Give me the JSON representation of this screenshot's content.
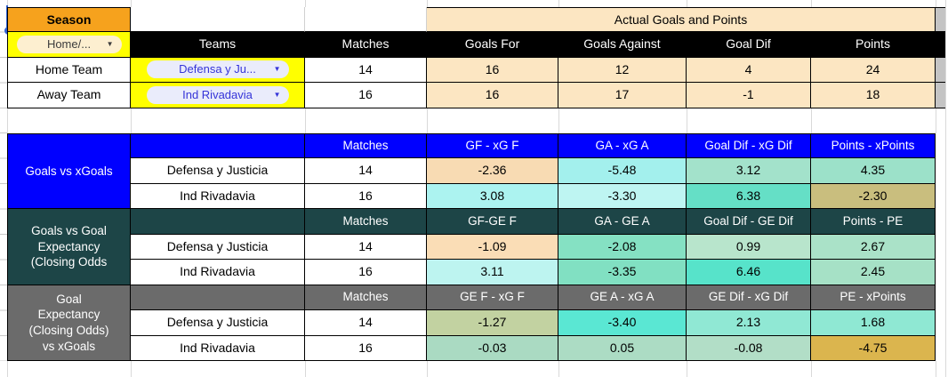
{
  "palette": {
    "orange_header": "#F6A21D",
    "cream": "#FCE6C2",
    "yellow": "#FFFF00",
    "black": "#000000",
    "white": "#FFFFFF",
    "blue": "#0000FF",
    "teal": "#1D4547",
    "gray": "#6B6B6B",
    "strip_gray": "#C4C4C4",
    "selection_blue": "#2F5FD0",
    "chip_home_bg": "#FDEFD0",
    "chip_team_bg": "#EAECFB",
    "s1r0v1": "#F8DBB3",
    "s1r0v2": "#A3F0ED",
    "s1r0v3": "#A3E2CB",
    "s1r0v4": "#9CE1C9",
    "s1r1v1": "#ACF3F0",
    "s1r1v2": "#BEF5F2",
    "s1r1v3": "#65DFC6",
    "s1r1v4": "#C9BE7E",
    "s2r0v1": "#FADDB6",
    "s2r0v2": "#85E1C3",
    "s2r0v3": "#B8E5CC",
    "s2r0v4": "#AAE2C8",
    "s2r1v1": "#BDF4F0",
    "s2r1v2": "#81E0C2",
    "s2r1v3": "#57E3CA",
    "s2r1v4": "#A6E1C6",
    "s3r0v1": "#C2D2A1",
    "s3r0v2": "#5AE7D3",
    "s3r0v3": "#90E8D4",
    "s3r0v4": "#8FE8D3",
    "s3r1v1": "#AADAC2",
    "s3r1v2": "#ACDCC4",
    "s3r1v3": "#B2DEC7",
    "s3r1v4": "#DBB54E"
  },
  "icons": {
    "dropdown_arrow": "▼"
  },
  "top": {
    "season": "Season",
    "group_header": "Actual Goals and Points",
    "home_away_dropdown": "Home/...",
    "headers": {
      "teams": "Teams",
      "matches": "Matches",
      "goals_for": "Goals For",
      "goals_against": "Goals Against",
      "goal_dif": "Goal Dif",
      "points": "Points"
    },
    "rows": [
      {
        "label": "Home Team",
        "team": "Defensa y Ju...",
        "matches": "14",
        "gf": "16",
        "ga": "12",
        "gd": "4",
        "pts": "24"
      },
      {
        "label": "Away Team",
        "team": "Ind Rivadavia",
        "matches": "16",
        "gf": "16",
        "ga": "17",
        "gd": "-1",
        "pts": "18"
      }
    ]
  },
  "sections": [
    {
      "label": "Goals vs xGoals",
      "matches_header": "Matches",
      "headers": [
        "GF - xG F",
        "GA - xG A",
        "Goal Dif - xG Dif",
        "Points - xPoints"
      ],
      "rows": [
        {
          "team": "Defensa y Justicia",
          "matches": "14",
          "v1": "-2.36",
          "v2": "-5.48",
          "v3": "3.12",
          "v4": "4.35"
        },
        {
          "team": "Ind Rivadavia",
          "matches": "16",
          "v1": "3.08",
          "v2": "-3.30",
          "v3": "6.38",
          "v4": "-2.30"
        }
      ]
    },
    {
      "label": "Goals vs Goal\nExpectancy\n(Closing Odds",
      "matches_header": "Matches",
      "headers": [
        "GF-GE F",
        "GA - GE A",
        "Goal Dif - GE Dif",
        "Points - PE"
      ],
      "rows": [
        {
          "team": "Defensa y Justicia",
          "matches": "14",
          "v1": "-1.09",
          "v2": "-2.08",
          "v3": "0.99",
          "v4": "2.67"
        },
        {
          "team": "Ind Rivadavia",
          "matches": "16",
          "v1": "3.11",
          "v2": "-3.35",
          "v3": "6.46",
          "v4": "2.45"
        }
      ]
    },
    {
      "label": "Goal\nExpectancy\n(Closing Odds)\nvs xGoals",
      "matches_header": "Matches",
      "headers": [
        "GE F - xG F",
        "GE A - xG A",
        "GE Dif - xG Dif",
        "PE - xPoints"
      ],
      "rows": [
        {
          "team": "Defensa y Justicia",
          "matches": "14",
          "v1": "-1.27",
          "v2": "-3.40",
          "v3": "2.13",
          "v4": "1.68"
        },
        {
          "team": "Ind Rivadavia",
          "matches": "16",
          "v1": "-0.03",
          "v2": "0.05",
          "v3": "-0.08",
          "v4": "-4.75"
        }
      ]
    }
  ]
}
